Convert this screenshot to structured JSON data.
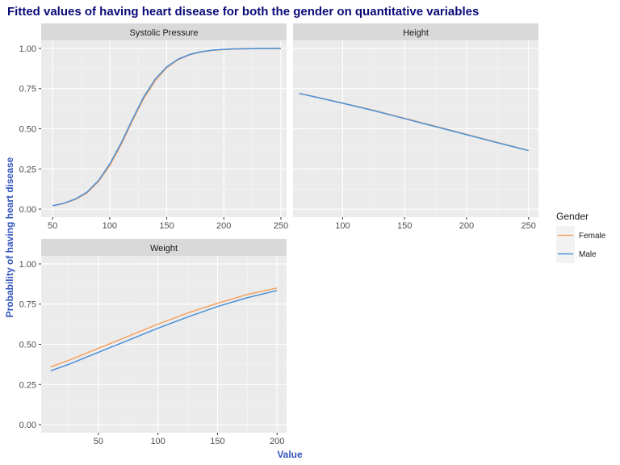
{
  "chart_data": {
    "type": "line",
    "title": "Fitted values of having heart disease for both the gender on quantitative variables",
    "xlabel": "Value",
    "ylabel": "Probability of having heart disease",
    "legend": {
      "title": "Gender",
      "placement": "right",
      "entries": [
        {
          "name": "Female",
          "color": "#f4a261"
        },
        {
          "name": "Male",
          "color": "#4a90d9"
        }
      ]
    },
    "grid": true,
    "panels": [
      {
        "strip": "Systolic Pressure",
        "xlim": [
          40,
          255
        ],
        "ylim": [
          -0.05,
          1.05
        ],
        "xticks": [
          50,
          100,
          150,
          200,
          250
        ],
        "xtick_labels": [
          "50",
          "100",
          "150",
          "200",
          "250"
        ],
        "yticks": [
          0,
          0.25,
          0.5,
          0.75,
          1.0
        ],
        "ytick_labels": [
          "0.00",
          "0.25",
          "0.50",
          "0.75",
          "1.00"
        ],
        "show_x_ticks": true,
        "show_y_ticks": true,
        "series": [
          {
            "name": "Female",
            "x": [
              50,
              60,
              70,
              80,
              90,
              100,
              110,
              120,
              130,
              140,
              150,
              160,
              170,
              180,
              190,
              200,
              210,
              220,
              230,
              240,
              250
            ],
            "y": [
              0.02,
              0.035,
              0.06,
              0.1,
              0.17,
              0.27,
              0.4,
              0.55,
              0.69,
              0.8,
              0.88,
              0.93,
              0.96,
              0.978,
              0.988,
              0.993,
              0.996,
              0.998,
              0.999,
              0.999,
              1.0
            ]
          },
          {
            "name": "Male",
            "x": [
              50,
              60,
              70,
              80,
              90,
              100,
              110,
              120,
              130,
              140,
              150,
              160,
              170,
              180,
              190,
              200,
              210,
              220,
              230,
              240,
              250
            ],
            "y": [
              0.021,
              0.037,
              0.063,
              0.105,
              0.176,
              0.28,
              0.41,
              0.56,
              0.7,
              0.81,
              0.885,
              0.933,
              0.962,
              0.979,
              0.989,
              0.994,
              0.997,
              0.998,
              0.999,
              0.999,
              1.0
            ]
          }
        ]
      },
      {
        "strip": "Height",
        "xlim": [
          60,
          258
        ],
        "ylim": [
          -0.05,
          1.05
        ],
        "xticks": [
          100,
          150,
          200,
          250
        ],
        "xtick_labels": [
          "100",
          "150",
          "200",
          "250"
        ],
        "yticks": [
          0,
          0.25,
          0.5,
          0.75,
          1.0
        ],
        "ytick_labels": [
          "",
          "",
          "",
          "",
          ""
        ],
        "show_x_ticks": true,
        "show_y_ticks": false,
        "series": [
          {
            "name": "Female",
            "x": [
              65,
              80,
              100,
              125,
              150,
              175,
              200,
              225,
              250
            ],
            "y": [
              0.72,
              0.695,
              0.66,
              0.615,
              0.565,
              0.515,
              0.465,
              0.415,
              0.365
            ]
          },
          {
            "name": "Male",
            "x": [
              65,
              80,
              100,
              125,
              150,
              175,
              200,
              225,
              250
            ],
            "y": [
              0.72,
              0.694,
              0.659,
              0.613,
              0.563,
              0.513,
              0.463,
              0.413,
              0.364
            ]
          }
        ]
      },
      {
        "strip": "Weight",
        "xlim": [
          2,
          208
        ],
        "ylim": [
          -0.05,
          1.05
        ],
        "xticks": [
          50,
          100,
          150,
          200
        ],
        "xtick_labels": [
          "50",
          "100",
          "150",
          "200"
        ],
        "yticks": [
          0,
          0.25,
          0.5,
          0.75,
          1.0
        ],
        "ytick_labels": [
          "0.00",
          "0.25",
          "0.50",
          "0.75",
          "1.00"
        ],
        "show_x_ticks": true,
        "show_y_ticks": true,
        "series": [
          {
            "name": "Female",
            "x": [
              10,
              25,
              50,
              75,
              100,
              125,
              150,
              175,
              200
            ],
            "y": [
              0.36,
              0.4,
              0.475,
              0.55,
              0.625,
              0.695,
              0.755,
              0.81,
              0.85
            ]
          },
          {
            "name": "Male",
            "x": [
              10,
              25,
              50,
              75,
              100,
              125,
              150,
              175,
              200
            ],
            "y": [
              0.335,
              0.375,
              0.45,
              0.525,
              0.6,
              0.67,
              0.735,
              0.79,
              0.835
            ]
          }
        ]
      }
    ]
  }
}
